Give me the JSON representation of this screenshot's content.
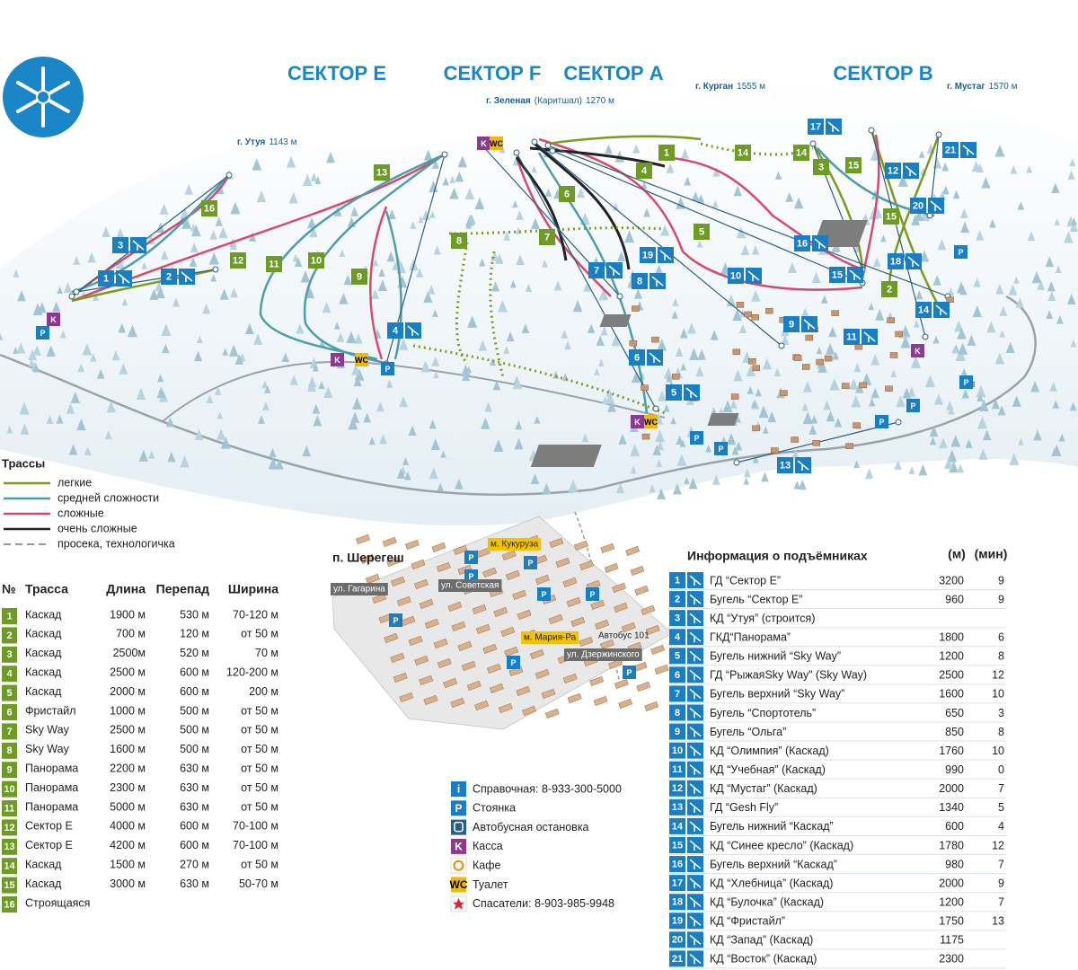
{
  "sectors": [
    "СЕКТОР Е",
    "СЕКТОР F",
    "СЕКТОР А",
    "СЕКТОР В"
  ],
  "peaks": [
    {
      "name": "г. Утуя",
      "height": "1143 м"
    },
    {
      "name": "г. Зеленая",
      "note": "(Каритшал)",
      "height": "1270 м"
    },
    {
      "name": "г. Курган",
      "height": "1555 м"
    },
    {
      "name": "г. Мустаг",
      "height": "1570 м"
    }
  ],
  "trail_legend": {
    "title": "Трассы",
    "items": [
      "легкие",
      "средней сложности",
      "сложные",
      "очень сложные",
      "просека, технологичка"
    ]
  },
  "trails": {
    "headers": [
      "№",
      "Трасса",
      "Длина",
      "Перепад",
      "Ширина"
    ],
    "rows": [
      [
        "1",
        "Каскад",
        "1900 м",
        "530 м",
        "70-120 м"
      ],
      [
        "2",
        "Каскад",
        "700 м",
        "120 м",
        "от 50 м"
      ],
      [
        "3",
        "Каскад",
        "2500м",
        "520 м",
        "70 м"
      ],
      [
        "4",
        "Каскад",
        "2500 м",
        "600 м",
        "120-200 м"
      ],
      [
        "5",
        "Каскад",
        "2000 м",
        "600 м",
        "200 м"
      ],
      [
        "6",
        "Фристайл",
        "1000 м",
        "500 м",
        "от 50 м"
      ],
      [
        "7",
        "Sky Way",
        "2500 м",
        "500 м",
        "от 50 м"
      ],
      [
        "8",
        "Sky Way",
        "1600 м",
        "500 м",
        "от 50 м"
      ],
      [
        "9",
        "Панорама",
        "2200 м",
        "630 м",
        "от 50 м"
      ],
      [
        "10",
        "Панорама",
        "2300 м",
        "630 м",
        "от 50 м"
      ],
      [
        "11",
        "Панорама",
        "5000 м",
        "630 м",
        "от 50 м"
      ],
      [
        "12",
        "Сектор Е",
        "4000 м",
        "600 м",
        "70-100 м"
      ],
      [
        "13",
        "Сектор Е",
        "4200 м",
        "600 м",
        "70-100 м"
      ],
      [
        "14",
        "Каскад",
        "1500 м",
        "270 м",
        "от 50 м"
      ],
      [
        "15",
        "Каскад",
        "3000 м",
        "630 м",
        "50-70 м"
      ],
      [
        "16",
        "Строящаяся"
      ]
    ]
  },
  "village": {
    "title": "п. Шерегеш",
    "labels": [
      "ул. Гагарина",
      "ул. Советская",
      "м. Кукуруза",
      "м. Мария-Ра",
      "Автобус 101",
      "ул. Дзержинского"
    ]
  },
  "services": [
    {
      "icon": "i",
      "text": "Справочная: 8-933-300-5000"
    },
    {
      "icon": "P",
      "text": "Стоянка"
    },
    {
      "text": "Автобусная остановка"
    },
    {
      "icon": "K",
      "text": "Касса"
    },
    {
      "text": "Кафе"
    },
    {
      "icon": "WC",
      "text": "Туалет"
    },
    {
      "text": "Спасатели: 8-903-985-9948"
    }
  ],
  "lifts": {
    "title": "Информация о подъёмниках",
    "headers": [
      "(м)",
      "(мин)"
    ],
    "rows": [
      {
        "n": "1",
        "name": "ГД “Сектор Е”",
        "m": 3200,
        "min": 9
      },
      {
        "n": "2",
        "name": "Бугель “Сектор Е”",
        "m": 960,
        "min": 9
      },
      {
        "n": "3",
        "name": "КД “Утуя” (строится)"
      },
      {
        "n": "4",
        "name": "ГКД“Панорама”",
        "m": 1800,
        "min": 6
      },
      {
        "n": "5",
        "name": "Бугель нижний “Sky Way”",
        "m": 1200,
        "min": 8
      },
      {
        "n": "6",
        "name": "ГД “РыжаяSky Way” (Sky Way)",
        "m": 2500,
        "min": 12
      },
      {
        "n": "7",
        "name": "Бугель верхний “Sky Way”",
        "m": 1600,
        "min": 10
      },
      {
        "n": "8",
        "name": "Бугель “Спортотель”",
        "m": 650,
        "min": 3
      },
      {
        "n": "9",
        "name": "Бугель “Ольга”",
        "m": 850,
        "min": 8
      },
      {
        "n": "10",
        "name": "КД “Олимпия” (Каскад)",
        "m": 1760,
        "min": 10
      },
      {
        "n": "11",
        "name": "КД “Учебная” (Каскад)",
        "m": 990,
        "min": 0
      },
      {
        "n": "12",
        "name": "КД “Мустаг” (Каскад)",
        "m": 2000,
        "min": 7
      },
      {
        "n": "13",
        "name": "ГД “Gesh Fly”",
        "m": 1340,
        "min": 5
      },
      {
        "n": "14",
        "name": "Бугель нижний “Каскад”",
        "m": 600,
        "min": 4
      },
      {
        "n": "15",
        "name": "КД “Синее кресло” (Каскад)",
        "m": 1780,
        "min": 12
      },
      {
        "n": "16",
        "name": "Бугель верхний “Каскад”",
        "m": 980,
        "min": 7
      },
      {
        "n": "17",
        "name": "КД “Хлебница” (Каскад)",
        "m": 2000,
        "min": 9
      },
      {
        "n": "18",
        "name": "КД “Булочка” (Каскад)",
        "m": 1200,
        "min": 7
      },
      {
        "n": "19",
        "name": "КД “Фристайл”",
        "m": 1750,
        "min": 13
      },
      {
        "n": "20",
        "name": "КД “Запад” (Каскад)",
        "m": 1175
      },
      {
        "n": "21",
        "name": "КД “Восток” (Каскад)",
        "m": 2300
      }
    ]
  }
}
